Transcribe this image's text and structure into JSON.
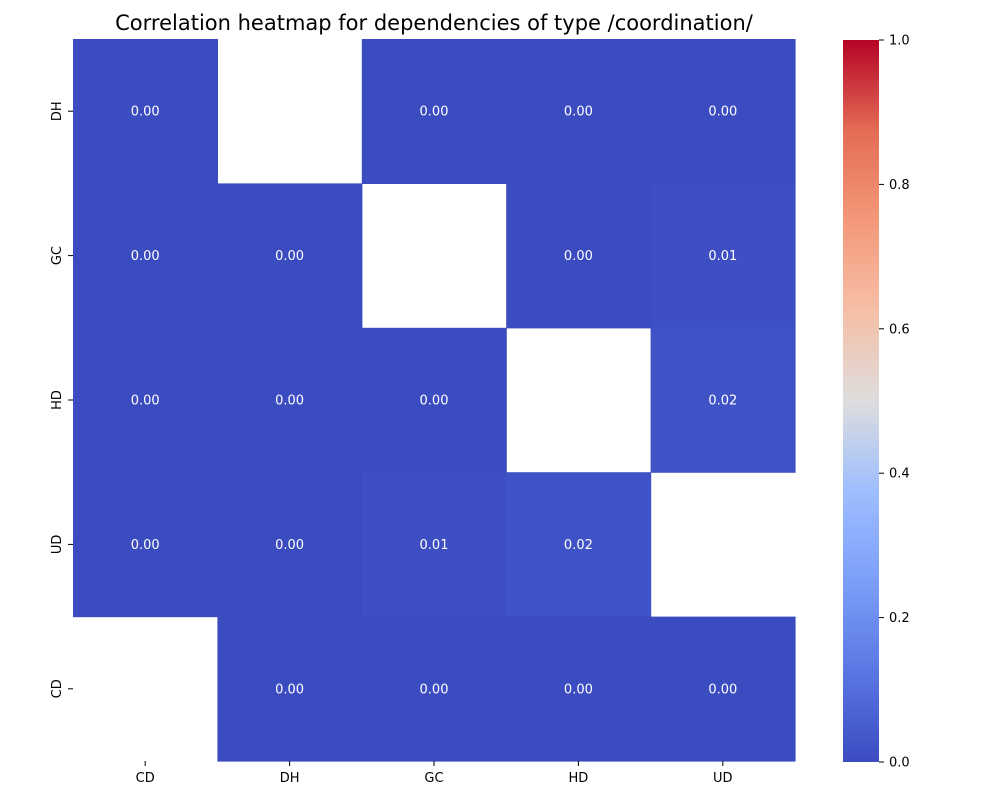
{
  "chart_data": {
    "type": "heatmap",
    "title": "Correlation heatmap for dependencies of type /coordination/",
    "xlabel": "",
    "ylabel": "",
    "x_categories": [
      "CD",
      "DH",
      "GC",
      "HD",
      "UD"
    ],
    "y_categories": [
      "DH",
      "GC",
      "HD",
      "UD",
      "CD"
    ],
    "values": [
      [
        0.0,
        null,
        0.0,
        0.0,
        0.0
      ],
      [
        0.0,
        0.0,
        null,
        0.0,
        0.01
      ],
      [
        0.0,
        0.0,
        0.0,
        null,
        0.02
      ],
      [
        0.0,
        0.0,
        0.01,
        0.02,
        null
      ],
      [
        null,
        0.0,
        0.0,
        0.0,
        0.0
      ]
    ],
    "value_format": "0.00",
    "colormap": "coolwarm",
    "colorbar": {
      "range": [
        0,
        1
      ],
      "ticks": [
        0.0,
        0.2,
        0.4,
        0.6,
        0.8,
        1.0
      ],
      "tick_labels": [
        "0.0",
        "0.2",
        "0.4",
        "0.6",
        "0.8",
        "1.0"
      ]
    },
    "missing_color": "#ffffff",
    "annotation_color": "#ffffff"
  }
}
